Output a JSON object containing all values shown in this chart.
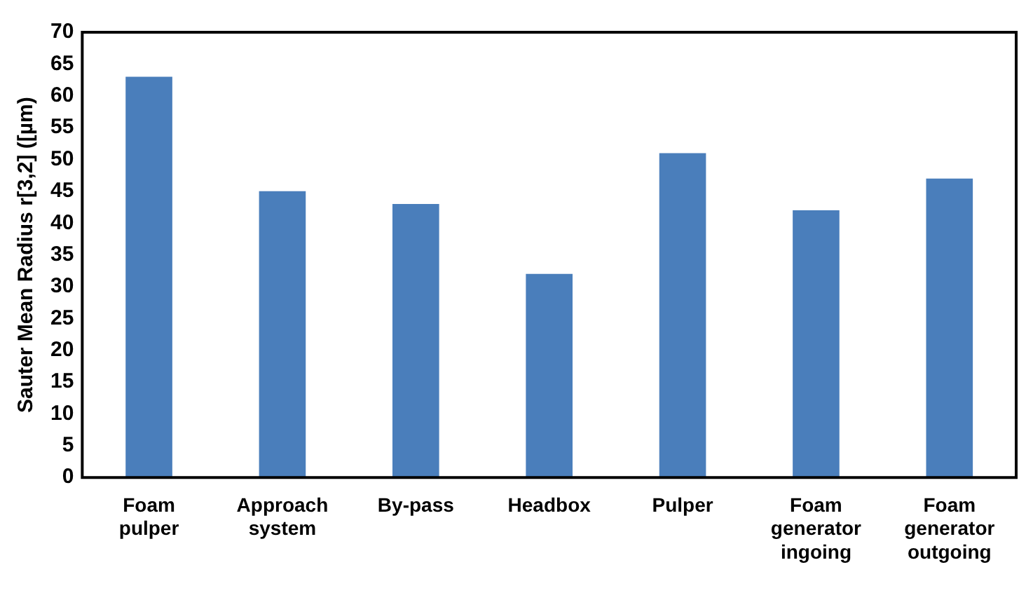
{
  "chart_data": {
    "type": "bar",
    "ylabel": "Sauter Mean Radius r[3,2] ([µm)",
    "categories": [
      "Foam\npulper",
      "Approach\nsystem",
      "By-pass",
      "Headbox",
      "Pulper",
      "Foam\ngenerator\ningoing",
      "Foam\ngenerator\noutgoing"
    ],
    "values": [
      63,
      45,
      43,
      32,
      51,
      42,
      47
    ],
    "color": "#4a7ebb",
    "ylim": [
      0,
      70
    ],
    "yticks": [
      0,
      5,
      10,
      15,
      20,
      25,
      30,
      35,
      40,
      45,
      50,
      55,
      60,
      65,
      70
    ],
    "grid": false,
    "legend": false
  }
}
